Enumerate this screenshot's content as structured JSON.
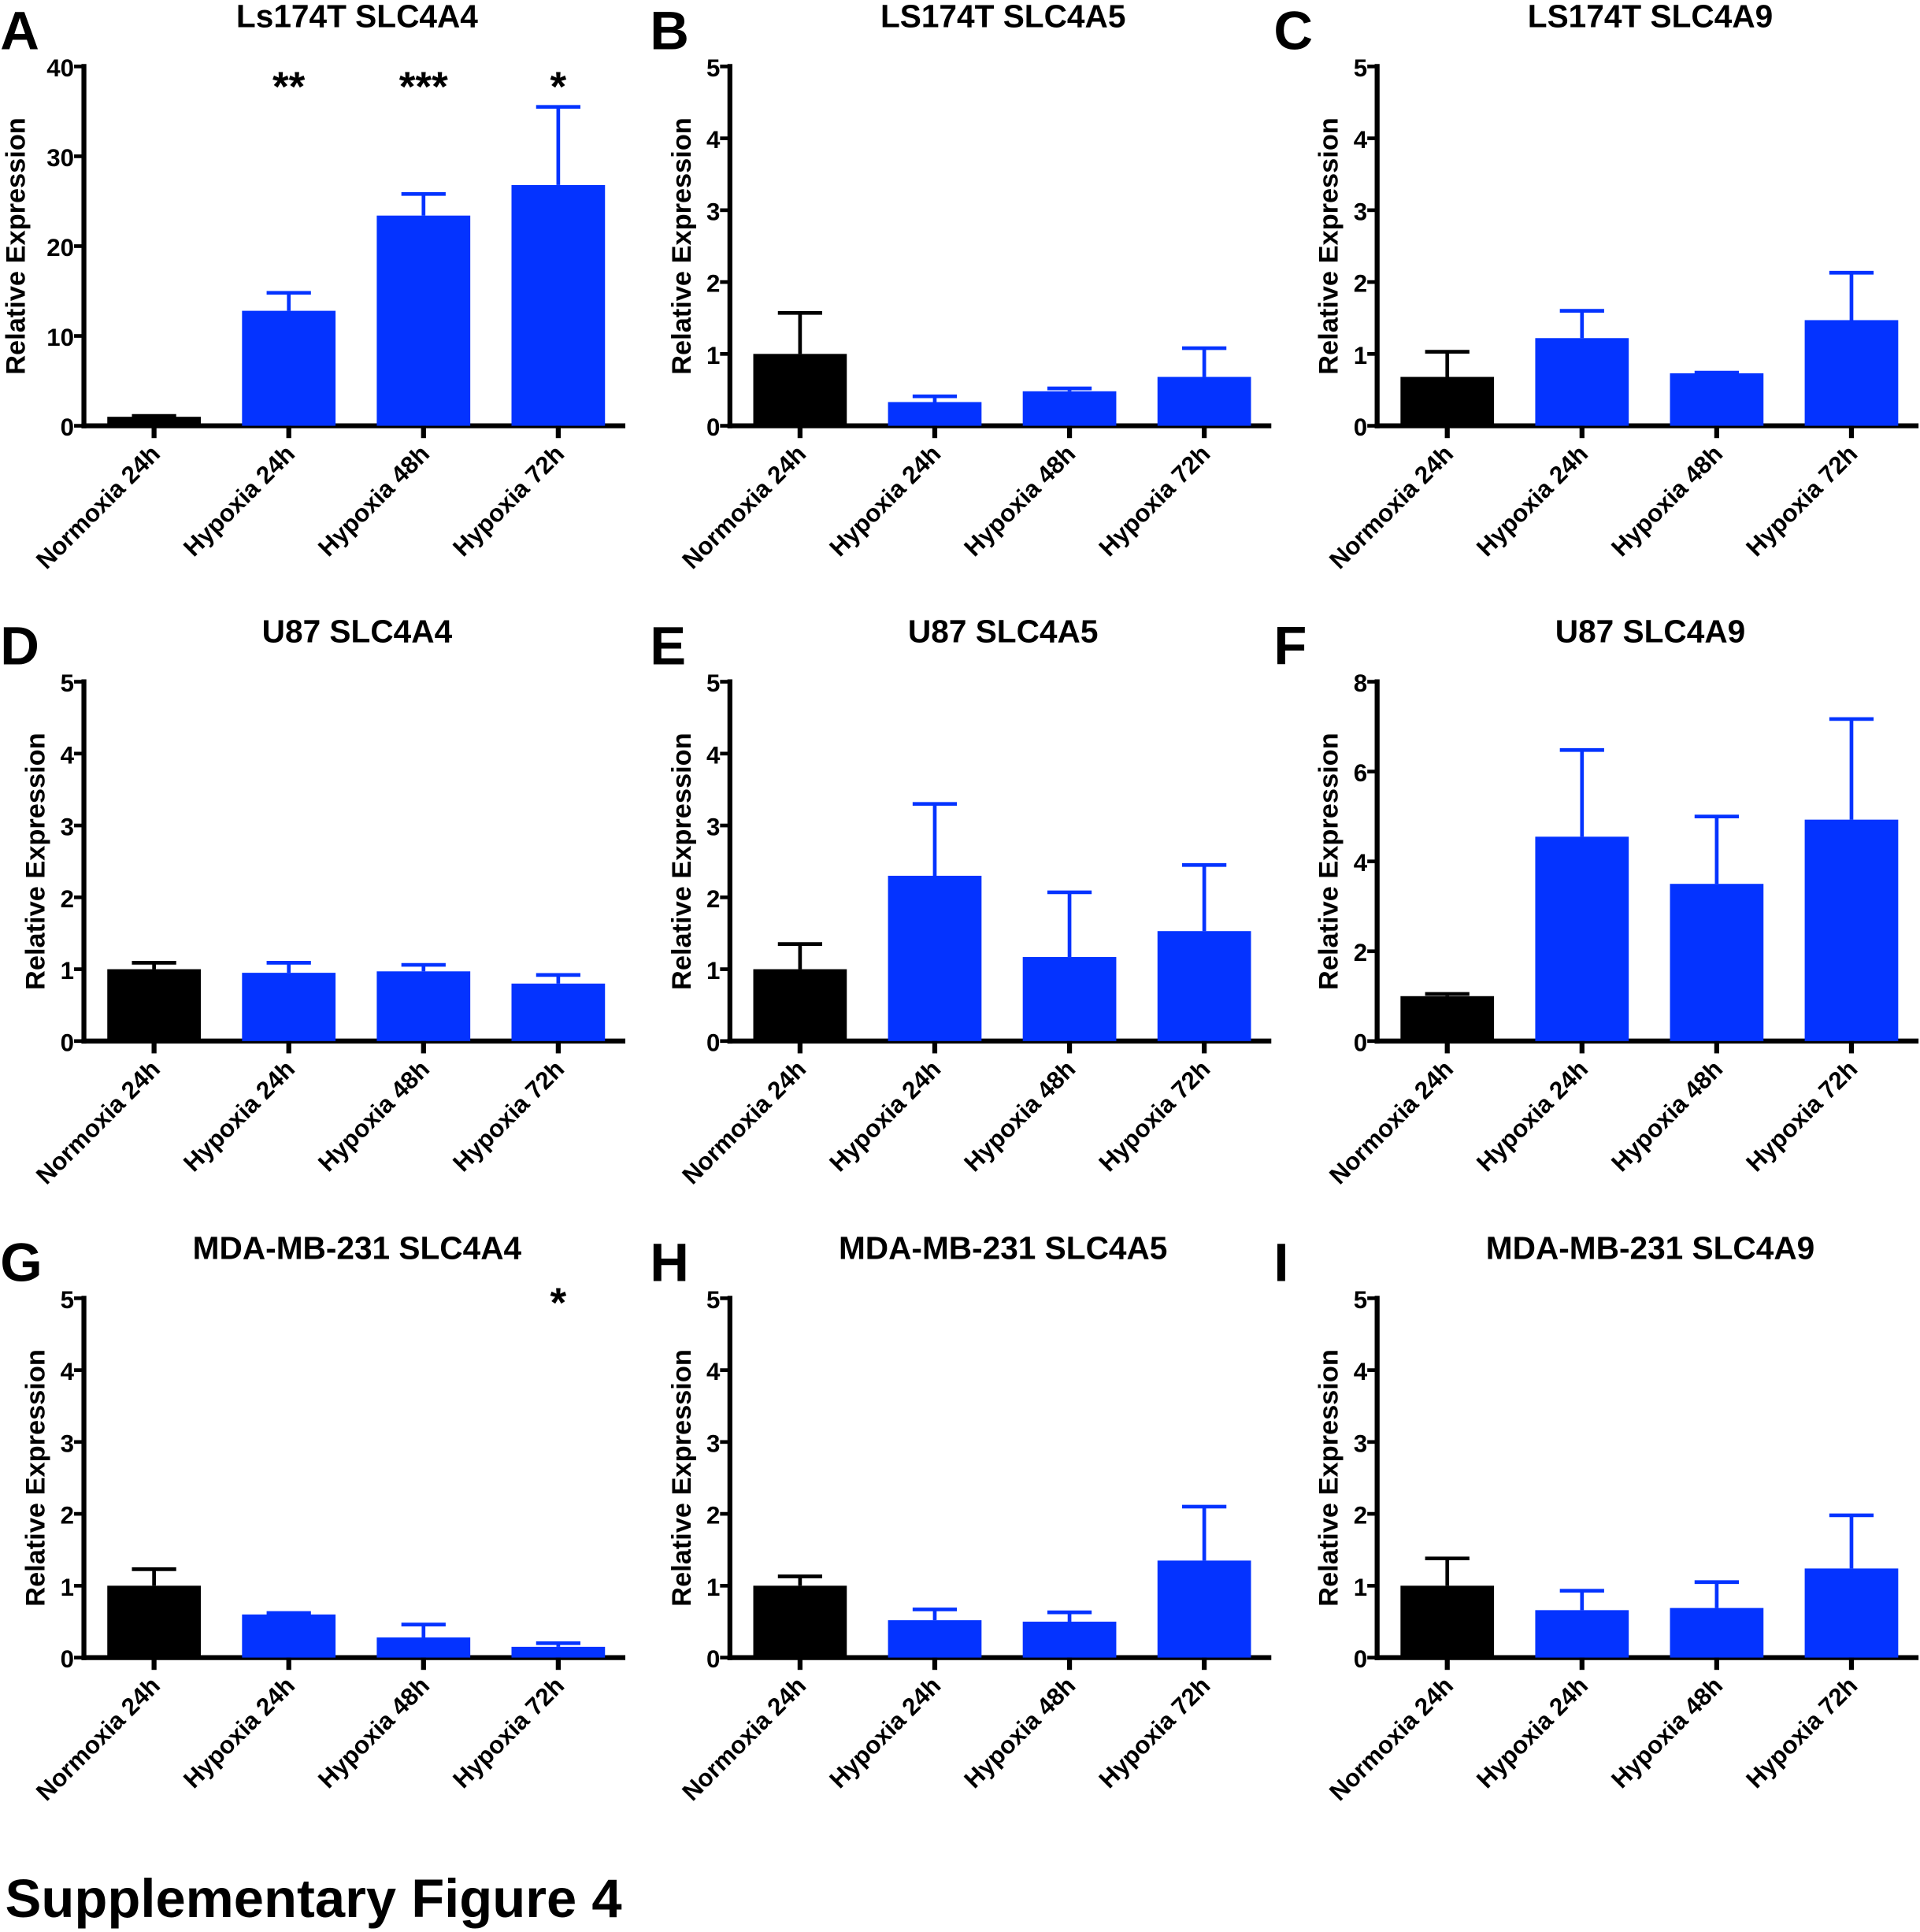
{
  "figure_title": "Supplementary Figure 4",
  "colors": {
    "normoxia": "#000000",
    "hypoxia": "#0433ff",
    "axis": "#000000"
  },
  "chart_data": [
    {
      "panel": "A",
      "type": "bar",
      "title": "Ls174T SLC4A4",
      "ylabel": "Relative Expression",
      "xlabel": "",
      "ylim": [
        0,
        40
      ],
      "yticks": [
        "0",
        "10",
        "20",
        "30",
        "40"
      ],
      "grid": false,
      "categories": [
        "Normoxia 24h",
        "Hypoxia 24h",
        "Hypoxia 48h",
        "Hypoxia 72h"
      ],
      "values": [
        1.0,
        12.8,
        23.4,
        26.8
      ],
      "errors": [
        0.1,
        2.0,
        2.4,
        8.7
      ],
      "significance": [
        "",
        "**",
        "***",
        "*"
      ]
    },
    {
      "panel": "B",
      "type": "bar",
      "title": "LS174T SLC4A5",
      "ylabel": "Relative Expression",
      "xlabel": "",
      "ylim": [
        0,
        5
      ],
      "yticks": [
        "0",
        "1",
        "2",
        "3",
        "4",
        "5"
      ],
      "grid": false,
      "categories": [
        "Normoxia 24h",
        "Hypoxia 24h",
        "Hypoxia 48h",
        "Hypoxia 72h"
      ],
      "values": [
        1.0,
        0.33,
        0.48,
        0.68
      ],
      "errors": [
        0.57,
        0.08,
        0.04,
        0.4
      ],
      "significance": [
        "",
        "",
        "",
        ""
      ]
    },
    {
      "panel": "C",
      "type": "bar",
      "title": "LS174T SLC4A9",
      "ylabel": "Relative Expression",
      "xlabel": "",
      "ylim": [
        0,
        5
      ],
      "yticks": [
        "0",
        "1",
        "2",
        "3",
        "4",
        "5"
      ],
      "grid": false,
      "categories": [
        "Normoxia 24h",
        "Hypoxia 24h",
        "Hypoxia 48h",
        "Hypoxia 72h"
      ],
      "values": [
        0.68,
        1.22,
        0.73,
        1.47
      ],
      "errors": [
        0.35,
        0.38,
        0.01,
        0.66
      ],
      "significance": [
        "",
        "",
        "",
        ""
      ]
    },
    {
      "panel": "D",
      "type": "bar",
      "title": "U87 SLC4A4",
      "ylabel": "Relative Expression",
      "xlabel": "",
      "ylim": [
        0,
        5
      ],
      "yticks": [
        "0",
        "1",
        "2",
        "3",
        "4",
        "5"
      ],
      "grid": false,
      "categories": [
        "Normoxia 24h",
        "Hypoxia 24h",
        "Hypoxia 48h",
        "Hypoxia 72h"
      ],
      "values": [
        1.0,
        0.95,
        0.97,
        0.8
      ],
      "errors": [
        0.09,
        0.14,
        0.09,
        0.12
      ],
      "significance": [
        "",
        "",
        "",
        ""
      ]
    },
    {
      "panel": "E",
      "type": "bar",
      "title": "U87 SLC4A5",
      "ylabel": "Relative Expression",
      "xlabel": "",
      "ylim": [
        0,
        5
      ],
      "yticks": [
        "0",
        "1",
        "2",
        "3",
        "4",
        "5"
      ],
      "grid": false,
      "categories": [
        "Normoxia 24h",
        "Hypoxia 24h",
        "Hypoxia 48h",
        "Hypoxia 72h"
      ],
      "values": [
        1.0,
        2.3,
        1.17,
        1.53
      ],
      "errors": [
        0.35,
        1.0,
        0.9,
        0.92
      ],
      "significance": [
        "",
        "",
        "",
        ""
      ]
    },
    {
      "panel": "F",
      "type": "bar",
      "title": "U87 SLC4A9",
      "ylabel": "Relative Expression",
      "xlabel": "",
      "ylim": [
        0,
        8
      ],
      "yticks": [
        "0",
        "2",
        "4",
        "6",
        "8"
      ],
      "grid": false,
      "categories": [
        "Normoxia 24h",
        "Hypoxia 24h",
        "Hypoxia 48h",
        "Hypoxia 72h"
      ],
      "values": [
        1.0,
        4.55,
        3.5,
        4.93
      ],
      "errors": [
        0.05,
        1.93,
        1.5,
        2.24
      ],
      "significance": [
        "",
        "",
        "",
        ""
      ]
    },
    {
      "panel": "G",
      "type": "bar",
      "title": "MDA-MB-231 SLC4A4",
      "ylabel": "Relative Expression",
      "xlabel": "",
      "ylim": [
        0,
        5
      ],
      "yticks": [
        "0",
        "1",
        "2",
        "3",
        "4",
        "5"
      ],
      "grid": false,
      "categories": [
        "Normoxia 24h",
        "Hypoxia 24h",
        "Hypoxia 48h",
        "Hypoxia 72h"
      ],
      "values": [
        1.0,
        0.6,
        0.28,
        0.15
      ],
      "errors": [
        0.23,
        0.02,
        0.18,
        0.05
      ],
      "significance": [
        "",
        "",
        "",
        "*"
      ]
    },
    {
      "panel": "H",
      "type": "bar",
      "title": "MDA-MB-231 SLC4A5",
      "ylabel": "Relative Expression",
      "xlabel": "",
      "ylim": [
        0,
        5
      ],
      "yticks": [
        "0",
        "1",
        "2",
        "3",
        "4",
        "5"
      ],
      "grid": false,
      "categories": [
        "Normoxia 24h",
        "Hypoxia 24h",
        "Hypoxia 48h",
        "Hypoxia 72h"
      ],
      "values": [
        1.0,
        0.52,
        0.5,
        1.35
      ],
      "errors": [
        0.13,
        0.15,
        0.13,
        0.75
      ],
      "significance": [
        "",
        "",
        "",
        ""
      ]
    },
    {
      "panel": "I",
      "type": "bar",
      "title": "MDA-MB-231 SLC4A9",
      "ylabel": "Relative Expression",
      "xlabel": "",
      "ylim": [
        0,
        5
      ],
      "yticks": [
        "0",
        "1",
        "2",
        "3",
        "4",
        "5"
      ],
      "grid": false,
      "categories": [
        "Normoxia 24h",
        "Hypoxia 24h",
        "Hypoxia 48h",
        "Hypoxia 72h"
      ],
      "values": [
        1.0,
        0.66,
        0.69,
        1.24
      ],
      "errors": [
        0.38,
        0.27,
        0.36,
        0.74
      ],
      "significance": [
        "",
        "",
        "",
        ""
      ]
    }
  ]
}
